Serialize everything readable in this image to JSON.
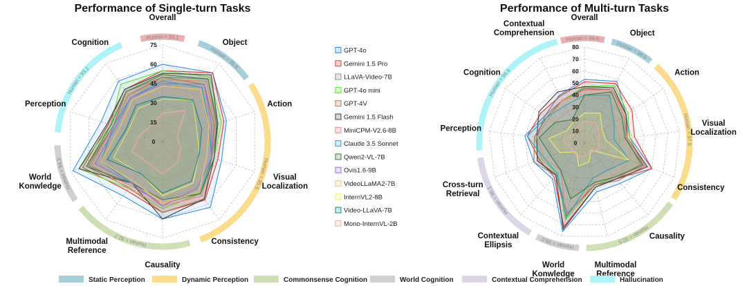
{
  "legend_categories": [
    {
      "label": "Static Perception",
      "color": "#a8d0dc"
    },
    {
      "label": "Dynamic Perception",
      "color": "#fbdc8c"
    },
    {
      "label": "Commonsense Cognition",
      "color": "#cfe0b4"
    },
    {
      "label": "World Cognition",
      "color": "#d0d0d0"
    },
    {
      "label": "Contextual Comprehension",
      "color": "#ddd6e6"
    },
    {
      "label": "Hallucination",
      "color": "#aef3f8"
    }
  ],
  "models": [
    {
      "name": "GPT-4o",
      "color": "#3a8ee6"
    },
    {
      "name": "Gemini 1.5 Pro",
      "color": "#e03a2a"
    },
    {
      "name": "LLaVA-Video-7B",
      "color": "#8a8a8a"
    },
    {
      "name": "GPT-4o mini",
      "color": "#5ee040"
    },
    {
      "name": "GPT-4V",
      "color": "#b07a50"
    },
    {
      "name": "Gemini 1.5 Flash",
      "color": "#404040"
    },
    {
      "name": "MiniCPM-V2.6-8B",
      "color": "#f08080"
    },
    {
      "name": "Claude 3.5 Sonnet",
      "color": "#20a8c8"
    },
    {
      "name": "Qwen2-VL-7B",
      "color": "#3a7a3a"
    },
    {
      "name": "Ovis1.6-9B",
      "color": "#9a6ae0"
    },
    {
      "name": "VideoLLaMA2-7B",
      "color": "#f5c860"
    },
    {
      "name": "InternVL2-8B",
      "color": "#f2f060"
    },
    {
      "name": "Video-LLaVA-7B",
      "color": "#108888"
    },
    {
      "name": "Mono-InternVL-2B",
      "color": "#f4a8a8"
    }
  ],
  "chart_data": [
    {
      "type": "radar",
      "title": "Performance of Single-turn Tasks",
      "range": [
        0,
        75
      ],
      "ticks": [
        "0",
        "15",
        "30",
        "45",
        "60",
        "75"
      ],
      "axes": [
        [
          "Overall"
        ],
        [
          "Object"
        ],
        [
          "Action"
        ],
        [
          "Visual",
          "Localization"
        ],
        [
          "Consistency"
        ],
        [
          "Causality"
        ],
        [
          "Multimodal",
          "Reference"
        ],
        [
          "World",
          "Konwledge"
        ],
        [
          "Perception"
        ],
        [
          "Cognition"
        ]
      ],
      "category_arcs": [
        {
          "color": "#e8b0b0",
          "human": "Human = 93.1",
          "from": -12,
          "to": 12
        },
        {
          "color": "#a8d0dc",
          "human": "Human = 95.8",
          "from": 20,
          "to": 53
        },
        {
          "color": "#fbdc8c",
          "human": "Human = 85.5",
          "from": 57,
          "to": 159
        },
        {
          "color": "#cfe0b4",
          "human": "Human = 92.7",
          "from": 165,
          "to": 231
        },
        {
          "color": "#d0d0d0",
          "human": "Human = 94.3",
          "from": 236,
          "to": 268
        },
        {
          "color": "#aef3f8",
          "human": "Human = 93.1",
          "from": 275,
          "to": 337
        }
      ],
      "series": [
        {
          "name": "GPT-4o",
          "values": [
            60,
            66,
            52,
            48,
            63,
            60,
            52,
            73,
            50,
            58
          ]
        },
        {
          "name": "Gemini 1.5 Pro",
          "values": [
            55,
            66,
            50,
            45,
            56,
            55,
            47,
            65,
            44,
            50
          ]
        },
        {
          "name": "LLaVA-Video-7B",
          "values": [
            50,
            60,
            45,
            40,
            50,
            48,
            42,
            60,
            40,
            45
          ]
        },
        {
          "name": "GPT-4o mini",
          "values": [
            55,
            62,
            48,
            42,
            50,
            52,
            45,
            68,
            42,
            55
          ]
        },
        {
          "name": "GPT-4V",
          "values": [
            50,
            55,
            42,
            40,
            55,
            55,
            44,
            62,
            40,
            48
          ]
        },
        {
          "name": "Gemini 1.5 Flash",
          "values": [
            53,
            64,
            45,
            42,
            55,
            60,
            40,
            68,
            45,
            50
          ]
        },
        {
          "name": "MiniCPM-V2.6-8B",
          "values": [
            48,
            58,
            43,
            40,
            52,
            50,
            45,
            58,
            40,
            45
          ]
        },
        {
          "name": "Claude 3.5 Sonnet",
          "values": [
            47,
            52,
            38,
            40,
            50,
            45,
            40,
            50,
            40,
            42
          ]
        },
        {
          "name": "Qwen2-VL-7B",
          "values": [
            52,
            60,
            44,
            42,
            50,
            45,
            40,
            62,
            42,
            48
          ]
        },
        {
          "name": "Ovis1.6-9B",
          "values": [
            45,
            55,
            40,
            40,
            45,
            50,
            40,
            55,
            38,
            42
          ]
        },
        {
          "name": "VideoLLaMA2-7B",
          "values": [
            43,
            50,
            38,
            36,
            48,
            48,
            38,
            50,
            35,
            40
          ]
        },
        {
          "name": "InternVL2-8B",
          "values": [
            33,
            40,
            28,
            30,
            40,
            42,
            30,
            40,
            28,
            32
          ]
        },
        {
          "name": "Video-LLaVA-7B",
          "values": [
            35,
            40,
            32,
            30,
            38,
            40,
            30,
            45,
            30,
            35
          ]
        },
        {
          "name": "Mono-InternVL-2B",
          "values": [
            22,
            30,
            12,
            15,
            20,
            25,
            20,
            25,
            18,
            15
          ]
        }
      ]
    },
    {
      "type": "radar",
      "title": "Performance of Multi-turn Tasks",
      "range": [
        0,
        80
      ],
      "ticks": [
        "0",
        "10",
        "20",
        "30",
        "40",
        "50",
        "60",
        "70",
        "80"
      ],
      "axes": [
        [
          "Overall"
        ],
        [
          "Object"
        ],
        [
          "Action"
        ],
        [
          "Visual",
          "Localization"
        ],
        [
          "Consistency"
        ],
        [
          "Causality"
        ],
        [
          "Multimodal",
          "Reference"
        ],
        [
          "World",
          "Konwledge"
        ],
        [
          "Contextual",
          "Ellipsis"
        ],
        [
          "Cross-turn",
          "Retrieval"
        ],
        [
          "Perception"
        ],
        [
          "Cognition"
        ],
        [
          "Contextual",
          "Comprehension"
        ]
      ],
      "category_arcs": [
        {
          "color": "#e8b0b0",
          "human": "Human = 94.6",
          "from": -13,
          "to": 11
        },
        {
          "color": "#a8d0dc",
          "human": "Human = 96.9",
          "from": 15,
          "to": 39
        },
        {
          "color": "#fbdc8c",
          "human": "Human = 87.9",
          "from": 43,
          "to": 122
        },
        {
          "color": "#cfe0b4",
          "human": "Human = 92.5",
          "from": 125,
          "to": 179
        },
        {
          "color": "#d0d0d0",
          "human": "Human = 95.0",
          "from": 183,
          "to": 207
        },
        {
          "color": "#ddd6e6",
          "human": "Human = 96.1",
          "from": 211,
          "to": 262
        },
        {
          "color": "#aef3f8",
          "human": "Human = 94.6",
          "from": 266,
          "to": 345
        }
      ],
      "series": [
        {
          "name": "GPT-4o",
          "values": [
            53,
            58,
            42,
            38,
            60,
            45,
            42,
            76,
            40,
            45,
            50,
            40,
            45
          ]
        },
        {
          "name": "Gemini 1.5 Pro",
          "values": [
            51,
            56,
            48,
            42,
            60,
            40,
            38,
            72,
            38,
            40,
            48,
            44,
            44
          ]
        },
        {
          "name": "LLaVA-Video-7B",
          "values": [
            46,
            50,
            40,
            35,
            50,
            40,
            36,
            60,
            35,
            42,
            40,
            40,
            40
          ]
        },
        {
          "name": "GPT-4o mini",
          "values": [
            47,
            54,
            44,
            38,
            52,
            38,
            36,
            66,
            34,
            38,
            42,
            38,
            40
          ]
        },
        {
          "name": "GPT-4V",
          "values": [
            45,
            50,
            42,
            36,
            54,
            42,
            36,
            62,
            36,
            45,
            42,
            38,
            40
          ]
        },
        {
          "name": "Gemini 1.5 Flash",
          "values": [
            47,
            52,
            42,
            36,
            56,
            40,
            38,
            74,
            36,
            42,
            40,
            46,
            48
          ]
        },
        {
          "name": "MiniCPM-V2.6-8B",
          "values": [
            44,
            50,
            40,
            36,
            54,
            38,
            34,
            64,
            30,
            36,
            40,
            36,
            40
          ]
        },
        {
          "name": "Claude 3.5 Sonnet",
          "values": [
            40,
            45,
            30,
            25,
            40,
            30,
            30,
            64,
            34,
            36,
            48,
            38,
            35
          ]
        },
        {
          "name": "Qwen2-VL-7B",
          "values": [
            40,
            48,
            38,
            34,
            52,
            38,
            34,
            48,
            30,
            30,
            38,
            30,
            22
          ]
        },
        {
          "name": "InternVL2-8B",
          "values": [
            25,
            28,
            18,
            18,
            40,
            8,
            16,
            20,
            10,
            22,
            30,
            18,
            20
          ]
        },
        {
          "name": "Mono-InternVL-2B",
          "values": [
            18,
            20,
            15,
            12,
            14,
            10,
            10,
            12,
            12,
            12,
            18,
            12,
            14
          ]
        }
      ]
    }
  ]
}
